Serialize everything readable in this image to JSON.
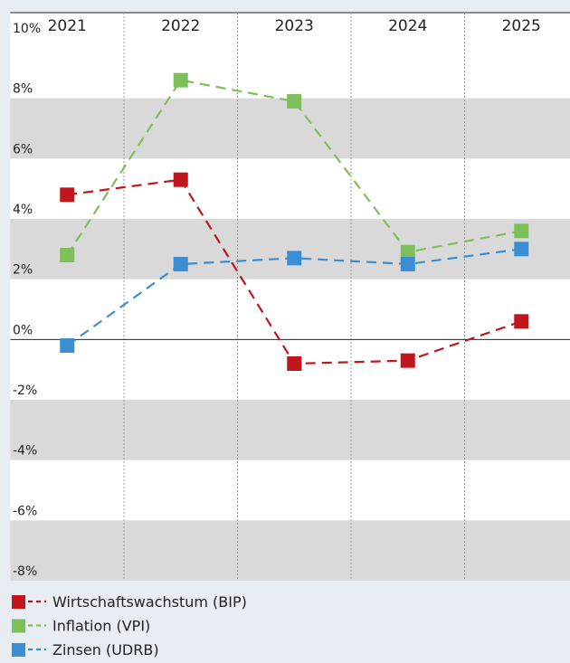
{
  "chart_data": {
    "type": "line",
    "categories": [
      "2021",
      "2022",
      "2023",
      "2024",
      "2025"
    ],
    "series": [
      {
        "name": "Wirtschaftswachstum (BIP)",
        "color": "#c0161c",
        "values": [
          4.8,
          5.3,
          -0.8,
          -0.7,
          0.6
        ]
      },
      {
        "name": "Inflation (VPI)",
        "color": "#7dc05a",
        "values": [
          2.8,
          8.6,
          7.9,
          2.9,
          3.6
        ]
      },
      {
        "name": "Zinsen (UDRB)",
        "color": "#3a8fd4",
        "values": [
          -0.2,
          2.5,
          2.7,
          2.5,
          3.0
        ]
      }
    ],
    "ylim": [
      -8,
      10
    ],
    "yticks": [
      {
        "value": -8,
        "label": "-8%"
      },
      {
        "value": -6,
        "label": "-6%"
      },
      {
        "value": -4,
        "label": "-4%"
      },
      {
        "value": -2,
        "label": "-2%"
      },
      {
        "value": 0,
        "label": "0%"
      },
      {
        "value": 2,
        "label": "2%"
      },
      {
        "value": 4,
        "label": "4%"
      },
      {
        "value": 6,
        "label": "6%"
      },
      {
        "value": 8,
        "label": "8%"
      },
      {
        "value": 10,
        "label": "10%"
      }
    ],
    "grid": true,
    "legend": "bottom"
  }
}
